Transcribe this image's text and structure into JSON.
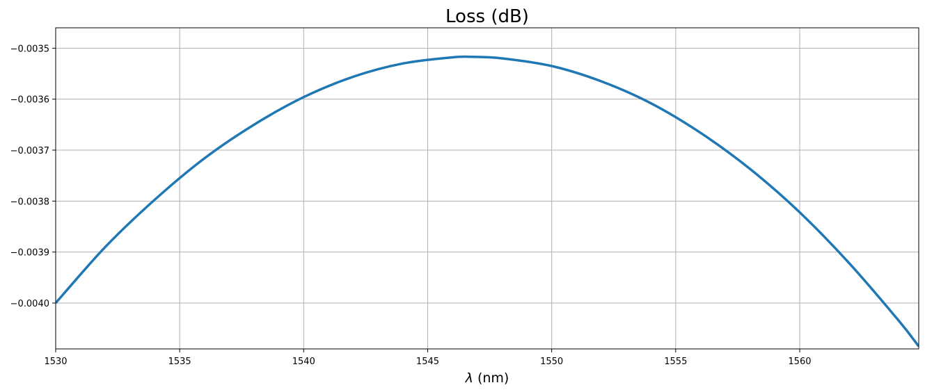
{
  "chart_data": {
    "type": "line",
    "title": "Loss (dB)",
    "xlabel_symbol": "λ",
    "xlabel_unit": " (nm)",
    "ylabel": "",
    "xlim": [
      1530,
      1564.8
    ],
    "ylim": [
      -0.00409,
      -0.00346
    ],
    "xticks": [
      1530,
      1535,
      1540,
      1545,
      1550,
      1555,
      1560
    ],
    "xtick_labels": [
      "1530",
      "1535",
      "1540",
      "1545",
      "1550",
      "1555",
      "1560"
    ],
    "yticks": [
      -0.0035,
      -0.0036,
      -0.0037,
      -0.0038,
      -0.0039,
      -0.004
    ],
    "ytick_labels": [
      "−0.0035",
      "−0.0036",
      "−0.0037",
      "−0.0038",
      "−0.0039",
      "−0.0040"
    ],
    "grid": true,
    "series": [
      {
        "color": "#1f77b4",
        "x": [
          1530,
          1532,
          1534,
          1536,
          1538,
          1540,
          1542,
          1544,
          1546,
          1546.8,
          1548,
          1550,
          1552,
          1554,
          1556,
          1558,
          1560,
          1562,
          1564,
          1564.8
        ],
        "y": [
          -0.004,
          -0.00389,
          -0.003797,
          -0.003716,
          -0.00365,
          -0.003596,
          -0.003556,
          -0.00353,
          -0.003518,
          -0.003517,
          -0.00352,
          -0.003535,
          -0.003565,
          -0.003608,
          -0.003666,
          -0.003737,
          -0.003822,
          -0.003922,
          -0.004035,
          -0.004085
        ]
      }
    ]
  }
}
